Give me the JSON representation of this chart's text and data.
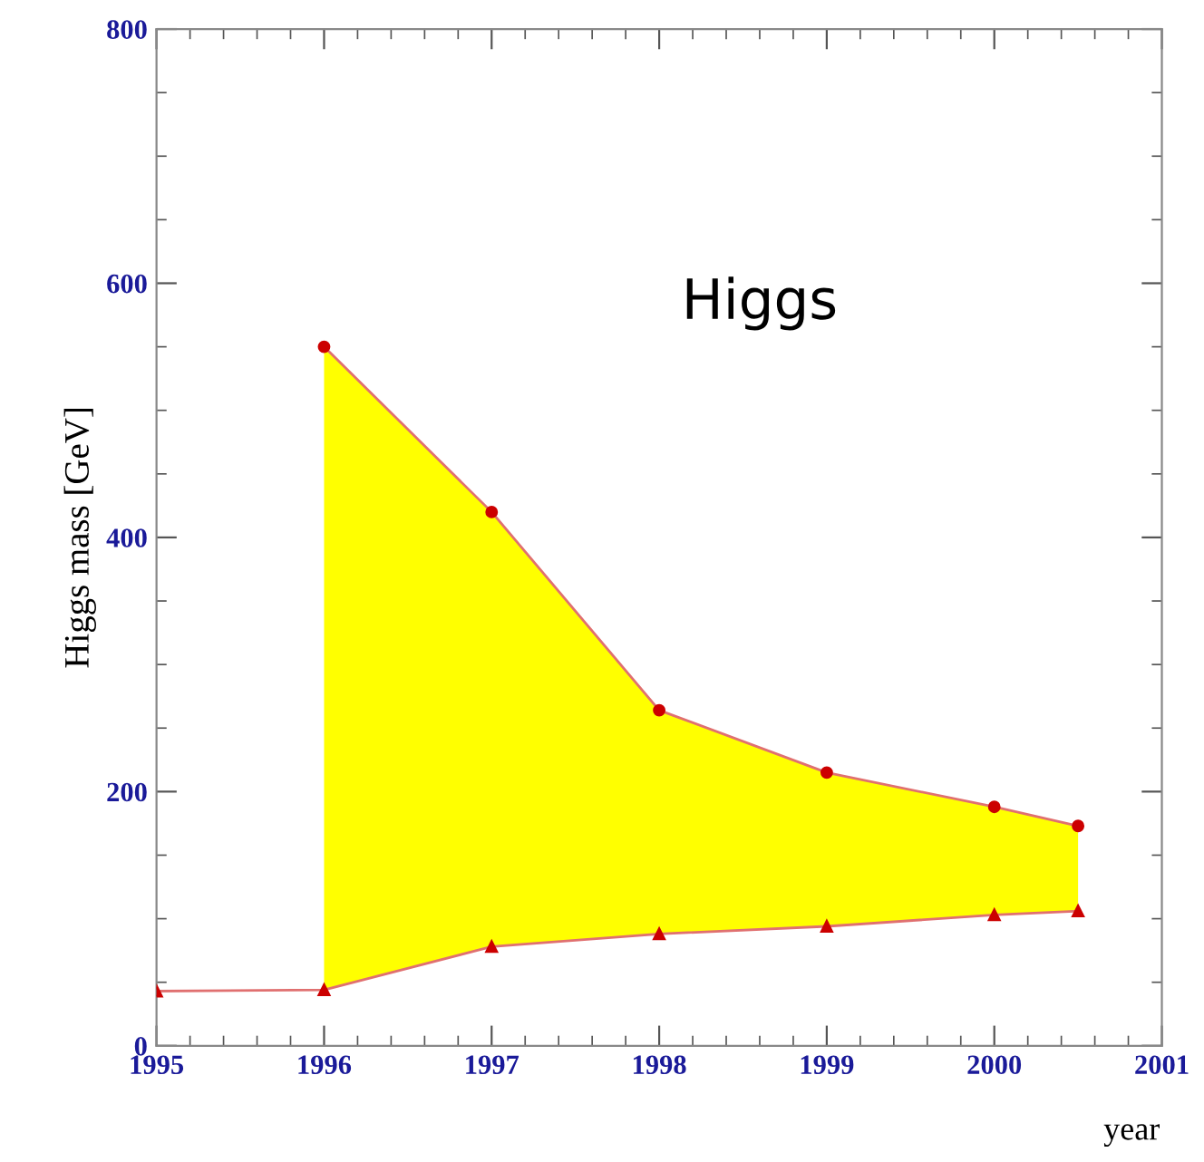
{
  "chart_data": {
    "type": "line",
    "xlabel": "year",
    "ylabel": "Higgs mass [GeV]",
    "xlim": [
      1995,
      2001
    ],
    "xticks": [
      1995,
      1996,
      1997,
      1998,
      1999,
      2000,
      2001
    ],
    "ylim": [
      0,
      800
    ],
    "yticks": [
      0,
      200,
      400,
      600,
      800
    ],
    "grid": false,
    "legend": false,
    "line_style": "solid",
    "annotations": [
      "Higgs"
    ],
    "series": [
      {
        "type": "area",
        "color": "#ffff00",
        "x": [
          1996,
          1997,
          1998,
          1999,
          2000,
          2000.5
        ],
        "values": [
          550,
          420,
          264,
          215,
          188,
          173
        ],
        "marker": "circle"
      },
      {
        "color": "#e07070",
        "marker": "triangle",
        "x": [
          1995,
          1996,
          1997,
          1998,
          1999,
          2000,
          2000.5
        ],
        "values": [
          43,
          44,
          78,
          88,
          94,
          103,
          106
        ]
      }
    ]
  }
}
